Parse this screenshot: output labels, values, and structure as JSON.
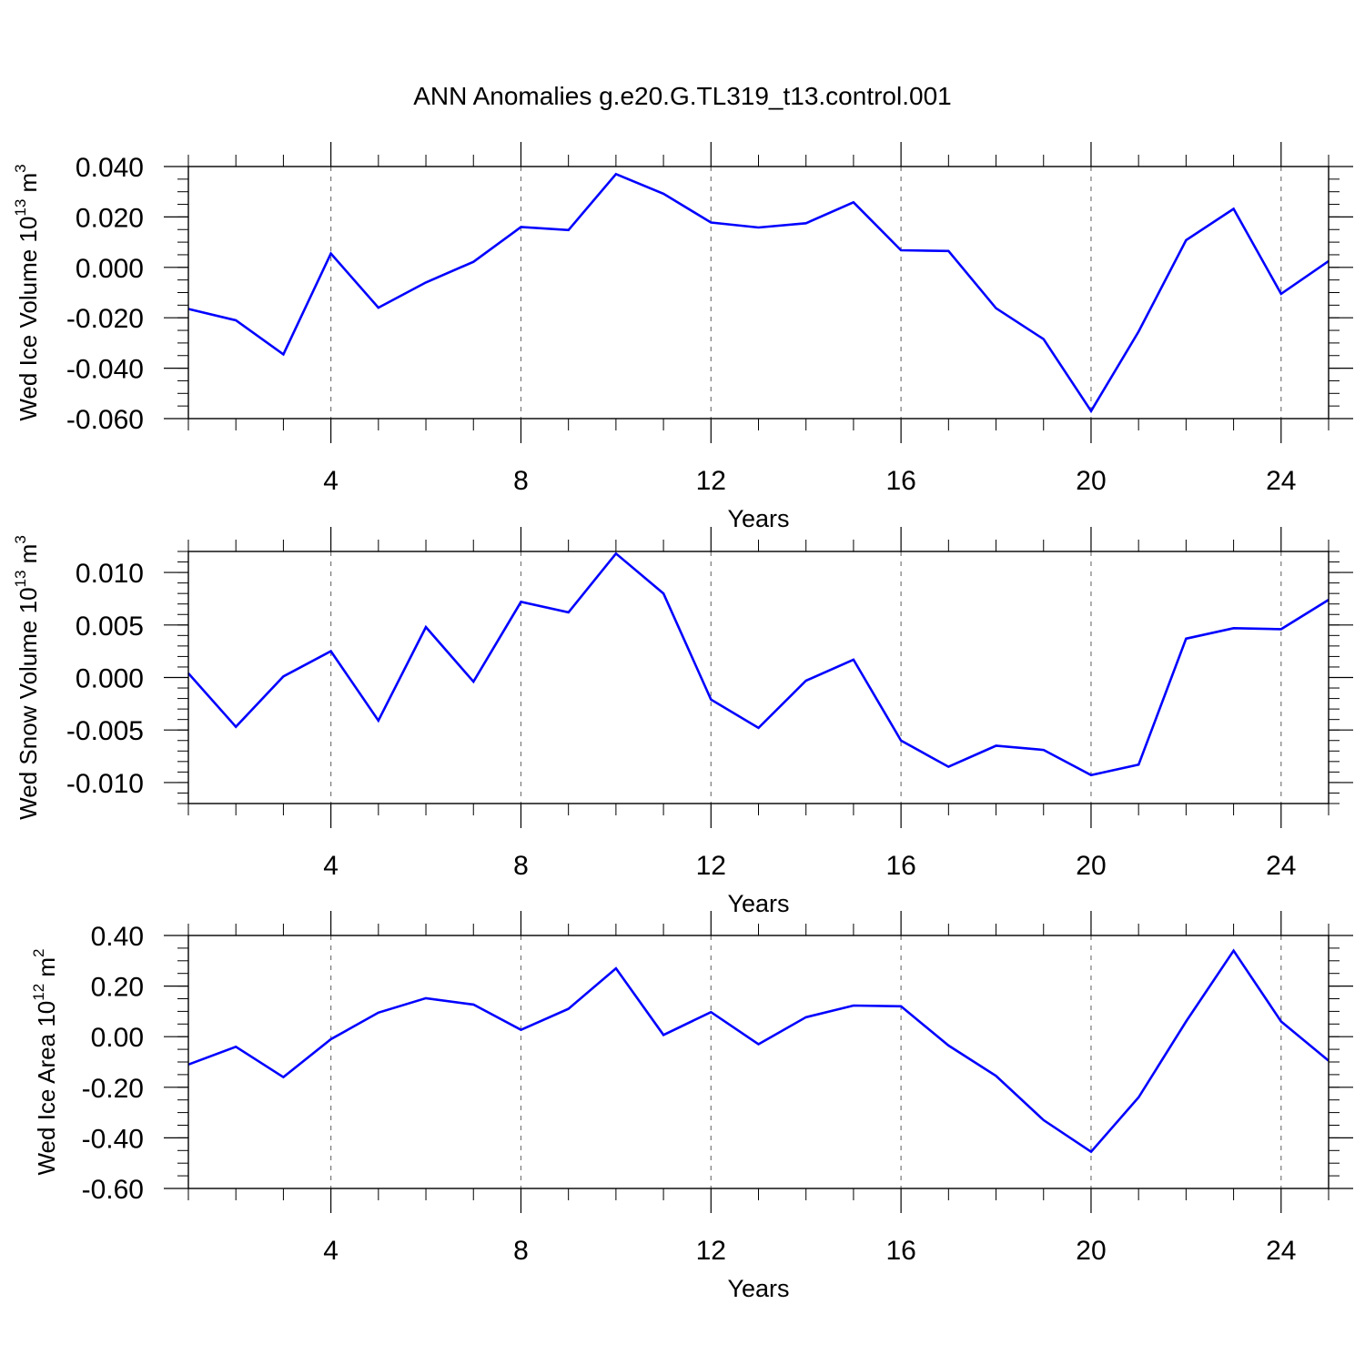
{
  "title": "ANN Anomalies g.e20.G.TL319_t13.control.001",
  "style": {
    "line_color": "#0000ff",
    "grid_color": "#777777"
  },
  "chart_data": [
    {
      "type": "line",
      "name": "ice-volume",
      "title": "ANN Anomalies g.e20.G.TL319_t13.control.001",
      "xlabel": "Years",
      "ylabel_prefix": "Wed Ice Volume 10",
      "ylabel_exp": "13",
      "ylabel_unit": "m",
      "ylabel_unit_exp": "3",
      "xlim": [
        1,
        25
      ],
      "ylim": [
        -0.06,
        0.04
      ],
      "x_ticks": [
        4,
        8,
        12,
        16,
        20,
        24
      ],
      "x_tick_labels": [
        "4",
        "8",
        "12",
        "16",
        "20",
        "24"
      ],
      "y_ticks": [
        0.04,
        0.02,
        0.0,
        -0.02,
        -0.04,
        -0.06
      ],
      "y_tick_labels": [
        "0.040",
        "0.020",
        "0.000",
        "-0.020",
        "-0.040",
        "-0.060"
      ],
      "y_minor_step": 0.005,
      "x": [
        1,
        2,
        3,
        4,
        5,
        6,
        7,
        8,
        9,
        10,
        11,
        12,
        13,
        14,
        15,
        16,
        17,
        18,
        19,
        20,
        21,
        22,
        23,
        24,
        25
      ],
      "values": [
        -0.0165,
        -0.021,
        -0.0345,
        0.0055,
        -0.016,
        -0.006,
        0.0022,
        0.016,
        0.0148,
        0.037,
        0.0292,
        0.0178,
        0.0158,
        0.0175,
        0.0258,
        0.0068,
        0.0065,
        -0.0162,
        -0.0285,
        -0.057,
        -0.0255,
        0.0108,
        0.0232,
        -0.0105,
        0.0025
      ],
      "grid_x": [
        4,
        8,
        12,
        16,
        20,
        24
      ]
    },
    {
      "type": "line",
      "name": "snow-volume",
      "xlabel": "Years",
      "ylabel_prefix": "Wed Snow Volume 10",
      "ylabel_exp": "13",
      "ylabel_unit": "m",
      "ylabel_unit_exp": "3",
      "xlim": [
        1,
        25
      ],
      "ylim": [
        -0.012,
        0.012
      ],
      "x_ticks": [
        4,
        8,
        12,
        16,
        20,
        24
      ],
      "x_tick_labels": [
        "4",
        "8",
        "12",
        "16",
        "20",
        "24"
      ],
      "y_ticks": [
        0.01,
        0.005,
        0.0,
        -0.005,
        -0.01
      ],
      "y_tick_labels": [
        "0.010",
        "0.005",
        "0.000",
        "-0.005",
        "-0.010"
      ],
      "y_minor_step": 0.001,
      "x": [
        1,
        2,
        3,
        4,
        5,
        6,
        7,
        8,
        9,
        10,
        11,
        12,
        13,
        14,
        15,
        16,
        17,
        18,
        19,
        20,
        21,
        22,
        23,
        24,
        25
      ],
      "values": [
        0.0004,
        -0.0047,
        0.0001,
        0.0025,
        -0.0041,
        0.0048,
        -0.0004,
        0.0072,
        0.0062,
        0.0118,
        0.008,
        -0.0021,
        -0.0048,
        -0.0003,
        0.0017,
        -0.006,
        -0.0085,
        -0.0065,
        -0.0069,
        -0.0093,
        -0.0083,
        0.0037,
        0.0047,
        0.0046,
        0.0074
      ],
      "grid_x": [
        4,
        8,
        12,
        16,
        20,
        24
      ]
    },
    {
      "type": "line",
      "name": "ice-area",
      "xlabel": "Years",
      "ylabel_prefix": "Wed Ice Area 10",
      "ylabel_exp": "12",
      "ylabel_unit": "m",
      "ylabel_unit_exp": "2",
      "xlim": [
        1,
        25
      ],
      "ylim": [
        -0.6,
        0.4
      ],
      "x_ticks": [
        4,
        8,
        12,
        16,
        20,
        24
      ],
      "x_tick_labels": [
        "4",
        "8",
        "12",
        "16",
        "20",
        "24"
      ],
      "y_ticks": [
        0.4,
        0.2,
        0.0,
        -0.2,
        -0.4,
        -0.6
      ],
      "y_tick_labels": [
        "0.40",
        "0.20",
        "0.00",
        "-0.20",
        "-0.40",
        "-0.60"
      ],
      "y_minor_step": 0.05,
      "x": [
        1,
        2,
        3,
        4,
        5,
        6,
        7,
        8,
        9,
        10,
        11,
        12,
        13,
        14,
        15,
        16,
        17,
        18,
        19,
        20,
        21,
        22,
        23,
        24,
        25
      ],
      "values": [
        -0.11,
        -0.04,
        -0.16,
        -0.01,
        0.095,
        0.152,
        0.127,
        0.027,
        0.11,
        0.27,
        0.007,
        0.097,
        -0.03,
        0.077,
        0.123,
        0.12,
        -0.035,
        -0.155,
        -0.33,
        -0.455,
        -0.24,
        0.06,
        0.34,
        0.06,
        -0.095
      ],
      "grid_x": [
        4,
        8,
        12,
        16,
        20,
        24
      ]
    }
  ]
}
